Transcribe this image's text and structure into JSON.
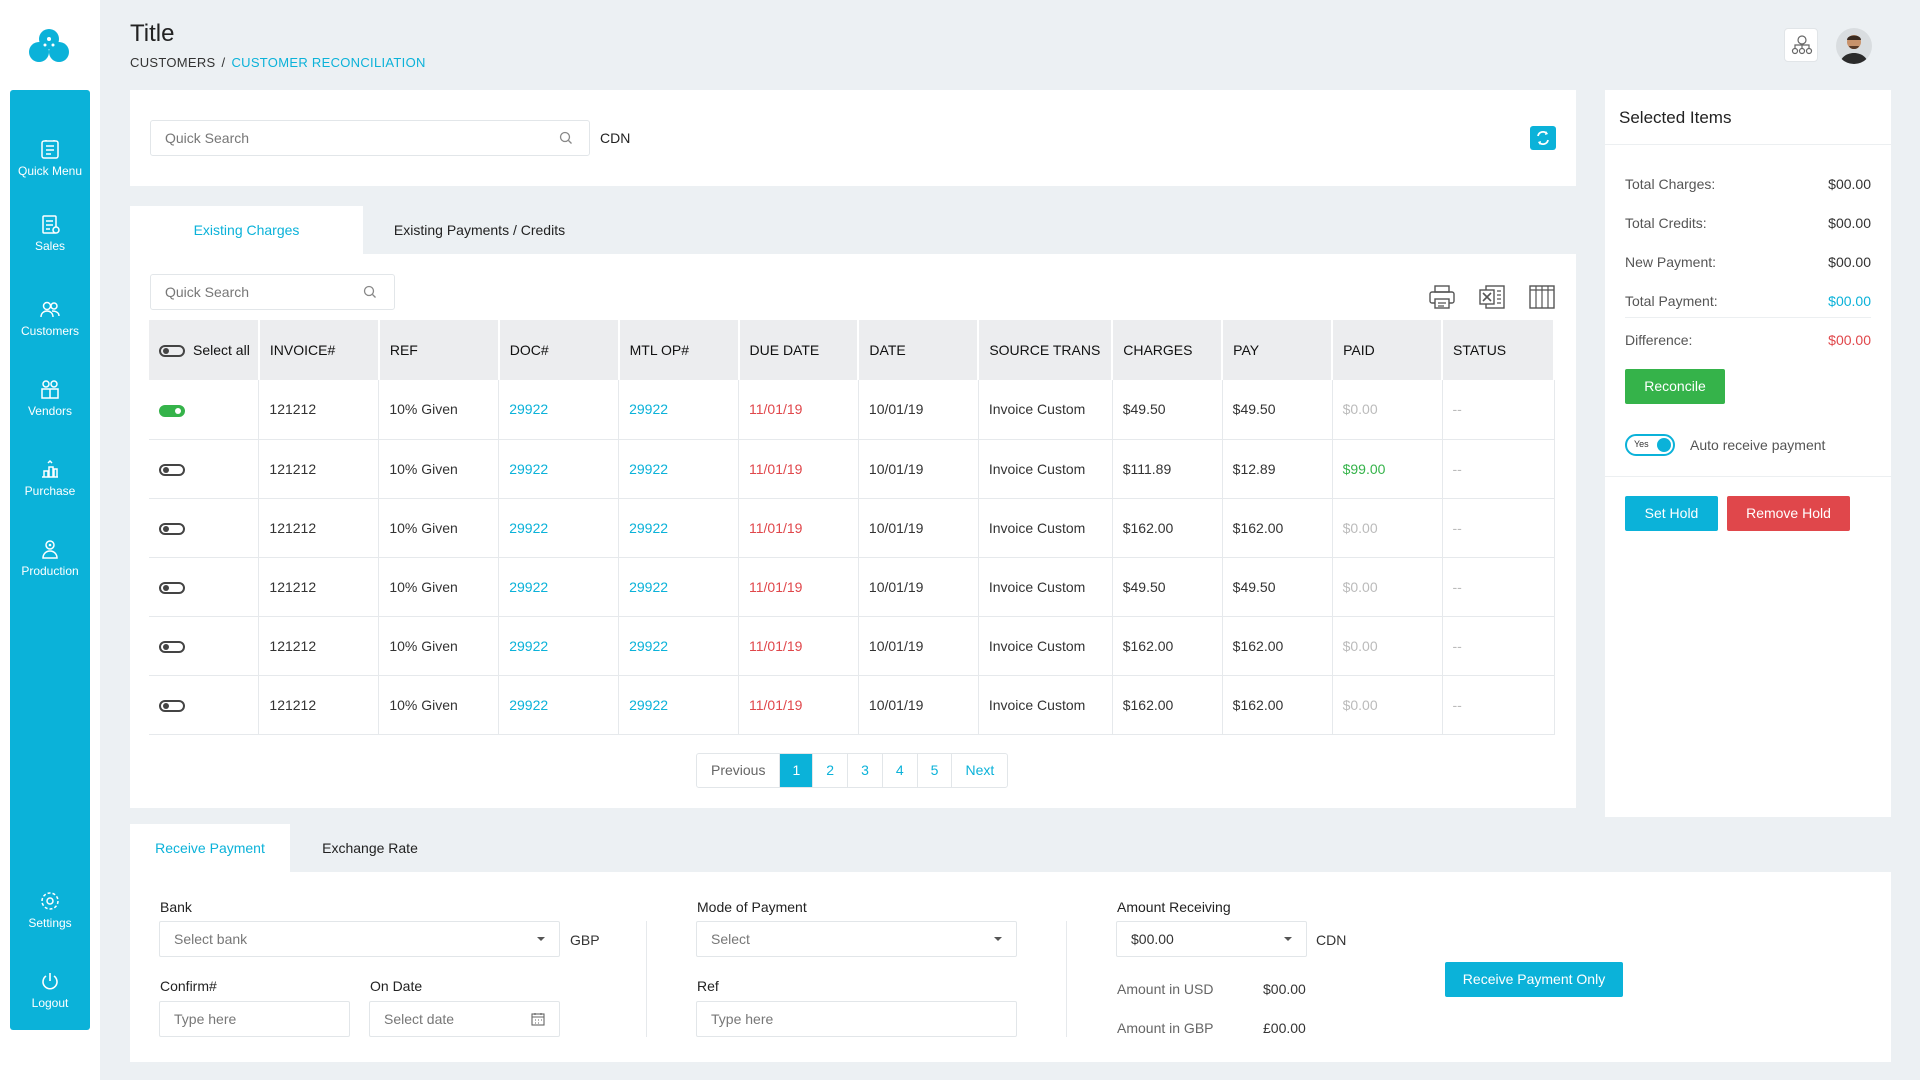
{
  "sidebar": {
    "items": [
      {
        "label": "Quick Menu",
        "icon": "quick-menu-icon"
      },
      {
        "label": "Sales",
        "icon": "sales-icon"
      },
      {
        "label": "Customers",
        "icon": "customers-icon"
      },
      {
        "label": "Vendors",
        "icon": "vendors-icon"
      },
      {
        "label": "Purchase",
        "icon": "purchase-icon"
      },
      {
        "label": "Production",
        "icon": "production-icon"
      }
    ],
    "bottom": [
      {
        "label": "Settings",
        "icon": "settings-icon"
      },
      {
        "label": "Logout",
        "icon": "logout-icon"
      }
    ]
  },
  "header": {
    "title": "Title",
    "breadcrumb": [
      "CUSTOMERS",
      "/",
      "CUSTOMER RECONCILIATION"
    ]
  },
  "search": {
    "placeholder": "Quick Search",
    "currency": "CDN"
  },
  "tabs": {
    "charges": "Existing Charges",
    "payments": "Existing Payments / Credits"
  },
  "table": {
    "search_placeholder": "Quick Search",
    "headers": [
      "Select all",
      "INVOICE#",
      "REF",
      "DOC#",
      "MTL OP#",
      "DUE DATE",
      "DATE",
      "SOURCE TRANS",
      "CHARGES",
      "PAY",
      "PAID",
      "STATUS"
    ],
    "rows": [
      {
        "selected": true,
        "invoice": "121212",
        "ref": "10% Given",
        "doc": "29922",
        "mtl": "29922",
        "due": "11/01/19",
        "date": "10/01/19",
        "source": "Invoice Custom",
        "charges": "$49.50",
        "pay": "$49.50",
        "paid": "$0.00",
        "paid_status": "muted",
        "status": "--"
      },
      {
        "selected": false,
        "invoice": "121212",
        "ref": "10% Given",
        "doc": "29922",
        "mtl": "29922",
        "due": "11/01/19",
        "date": "10/01/19",
        "source": "Invoice Custom",
        "charges": "$111.89",
        "pay": "$12.89",
        "paid": "$99.00",
        "paid_status": "green",
        "status": "--"
      },
      {
        "selected": false,
        "invoice": "121212",
        "ref": "10% Given",
        "doc": "29922",
        "mtl": "29922",
        "due": "11/01/19",
        "date": "10/01/19",
        "source": "Invoice Custom",
        "charges": "$162.00",
        "pay": "$162.00",
        "paid": "$0.00",
        "paid_status": "muted",
        "status": "--"
      },
      {
        "selected": false,
        "invoice": "121212",
        "ref": "10% Given",
        "doc": "29922",
        "mtl": "29922",
        "due": "11/01/19",
        "date": "10/01/19",
        "source": "Invoice Custom",
        "charges": "$49.50",
        "pay": "$49.50",
        "paid": "$0.00",
        "paid_status": "muted",
        "status": "--"
      },
      {
        "selected": false,
        "invoice": "121212",
        "ref": "10% Given",
        "doc": "29922",
        "mtl": "29922",
        "due": "11/01/19",
        "date": "10/01/19",
        "source": "Invoice Custom",
        "charges": "$162.00",
        "pay": "$162.00",
        "paid": "$0.00",
        "paid_status": "muted",
        "status": "--"
      },
      {
        "selected": false,
        "invoice": "121212",
        "ref": "10% Given",
        "doc": "29922",
        "mtl": "29922",
        "due": "11/01/19",
        "date": "10/01/19",
        "source": "Invoice Custom",
        "charges": "$162.00",
        "pay": "$162.00",
        "paid": "$0.00",
        "paid_status": "muted",
        "status": "--"
      }
    ]
  },
  "pagination": {
    "previous": "Previous",
    "pages": [
      "1",
      "2",
      "3",
      "4",
      "5"
    ],
    "current": "1",
    "next": "Next"
  },
  "selected_items": {
    "title": "Selected Items",
    "total_charges_label": "Total Charges:",
    "total_charges": "$00.00",
    "total_credits_label": "Total Credits:",
    "total_credits": "$00.00",
    "new_payment_label": "New Payment:",
    "new_payment": "$00.00",
    "total_payment_label": "Total Payment:",
    "total_payment": "$00.00",
    "difference_label": "Difference:",
    "difference": "$00.00",
    "reconcile": "Reconcile",
    "toggle_label": "Yes",
    "auto_receive": "Auto receive payment",
    "set_hold": "Set Hold",
    "remove_hold": "Remove Hold"
  },
  "payment": {
    "tab_receive": "Receive Payment",
    "tab_exchange": "Exchange Rate",
    "bank_label": "Bank",
    "bank_placeholder": "Select bank",
    "bank_currency": "GBP",
    "confirm_label": "Confirm#",
    "confirm_placeholder": "Type here",
    "on_date_label": "On Date",
    "on_date_placeholder": "Select date",
    "mode_label": "Mode of Payment",
    "mode_placeholder": "Select",
    "ref_label": "Ref",
    "ref_placeholder": "Type here",
    "amount_label": "Amount Receiving",
    "amount_value": "$00.00",
    "amount_currency": "CDN",
    "usd_label": "Amount in USD",
    "usd_value": "$00.00",
    "gbp_label": "Amount in GBP",
    "gbp_value": "£00.00",
    "receive_only": "Receive Payment Only"
  },
  "colors": {
    "accent": "#0bb2d9",
    "danger": "#e0474b",
    "success": "#35b34a"
  }
}
